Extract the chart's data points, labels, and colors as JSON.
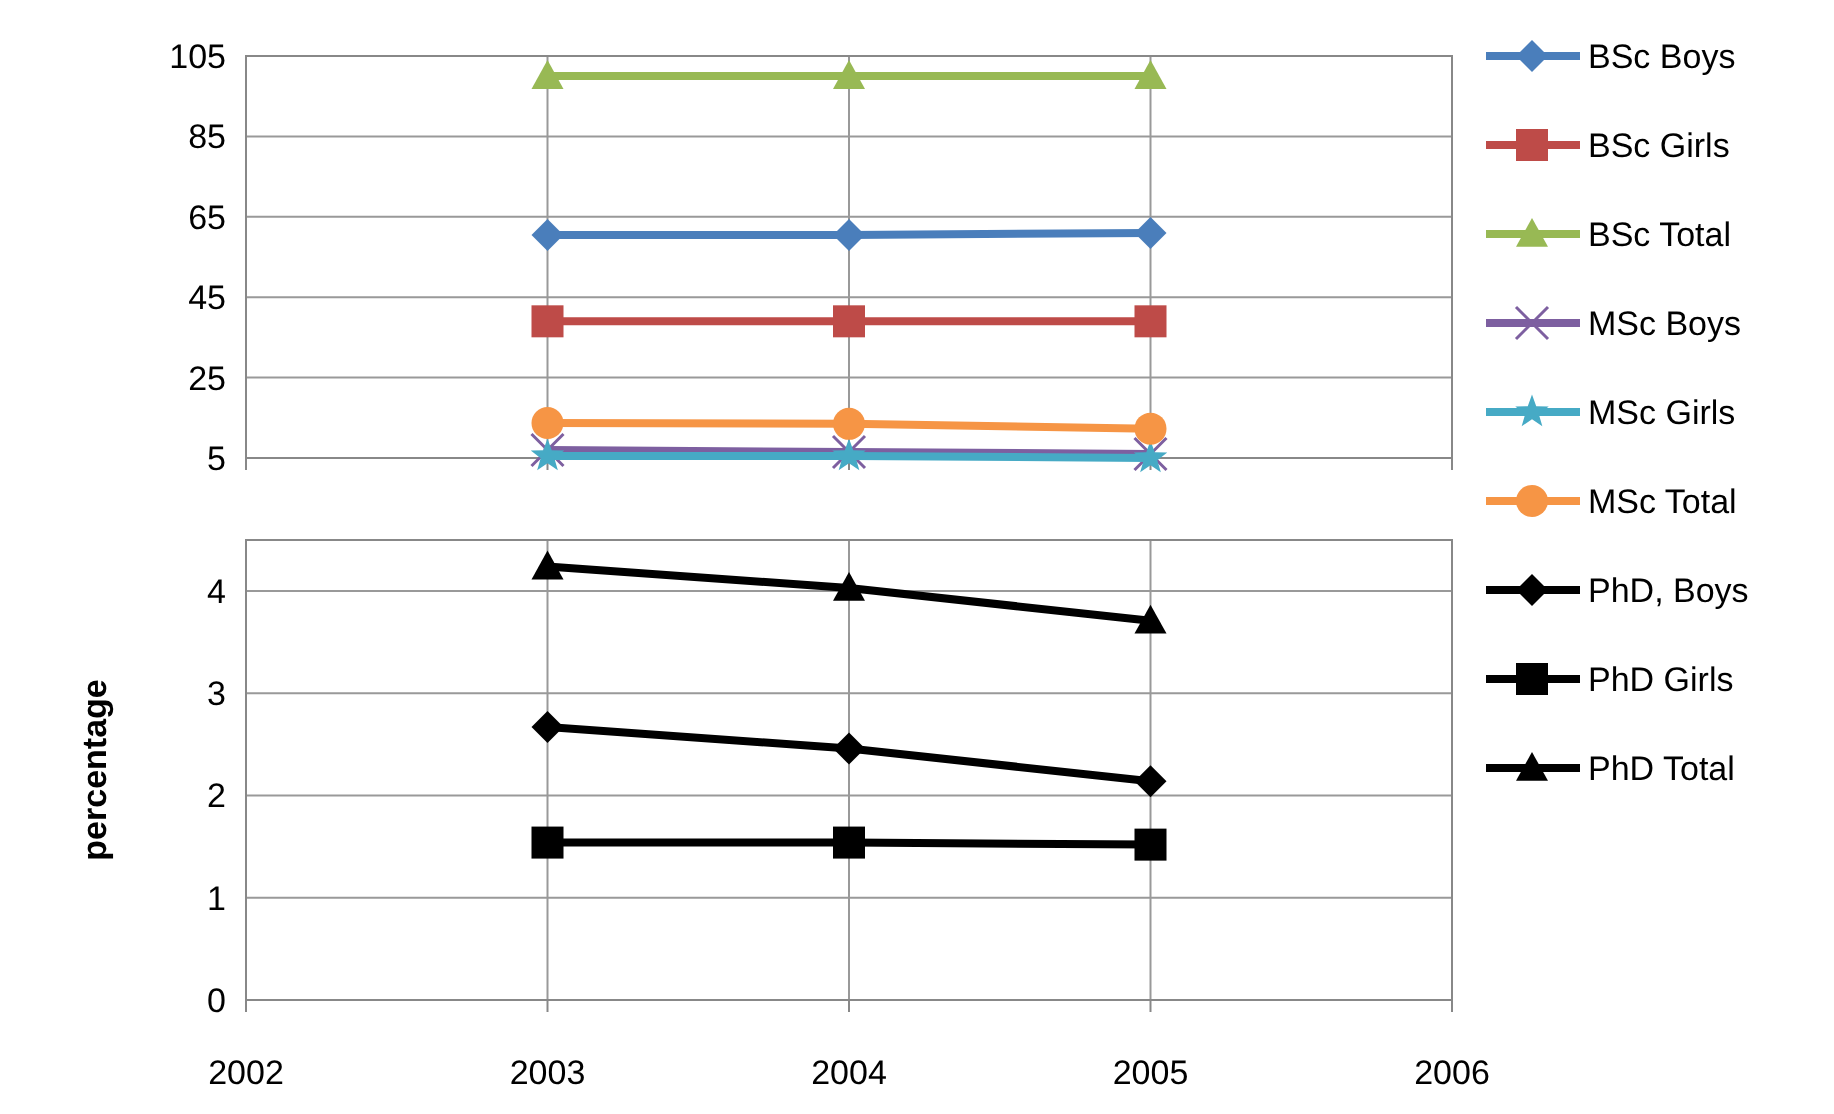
{
  "chart_data": [
    {
      "type": "line",
      "x": [
        2003,
        2004,
        2005
      ],
      "xlim": [
        2002,
        2006
      ],
      "xticks": [
        2002,
        2003,
        2004,
        2005,
        2006
      ],
      "ylim": [
        5,
        105
      ],
      "yticks": [
        5,
        25,
        45,
        65,
        85,
        105
      ],
      "grid": true,
      "legend": "right",
      "tick_labels": "y",
      "series": [
        {
          "name": "BSc Boys",
          "color": "#4a7ebb",
          "marker": "diamond",
          "values": [
            60.5,
            60.5,
            61
          ]
        },
        {
          "name": "BSc Girls",
          "color": "#be4b48",
          "marker": "square",
          "values": [
            39,
            39,
            39
          ]
        },
        {
          "name": "BSc Total",
          "color": "#98b954",
          "marker": "triangle",
          "values": [
            100,
            100,
            100
          ]
        },
        {
          "name": "MSc Boys",
          "color": "#7d5fa0",
          "marker": "cross",
          "values": [
            7,
            6.5,
            6
          ]
        },
        {
          "name": "MSc Girls",
          "color": "#46aac5",
          "marker": "star",
          "values": [
            5.5,
            5.5,
            5
          ]
        },
        {
          "name": "MSc Total",
          "color": "#f69545",
          "marker": "circle",
          "values": [
            13.7,
            13.5,
            12.3
          ]
        }
      ]
    },
    {
      "type": "line",
      "x": [
        2003,
        2004,
        2005
      ],
      "xlim": [
        2002,
        2006
      ],
      "xticks": [
        2002,
        2003,
        2004,
        2005,
        2006
      ],
      "ylim": [
        0,
        4.5
      ],
      "yticks": [
        0,
        1,
        2,
        3,
        4
      ],
      "ylabel": "percentage",
      "grid": true,
      "legend": "right",
      "series": [
        {
          "name": "PhD, Boys",
          "color": "#000000",
          "marker": "diamond",
          "values": [
            2.67,
            2.46,
            2.14
          ]
        },
        {
          "name": "PhD Girls",
          "color": "#000000",
          "marker": "square",
          "values": [
            1.54,
            1.54,
            1.52
          ]
        },
        {
          "name": "PhD Total",
          "color": "#000000",
          "marker": "triangle",
          "values": [
            4.24,
            4.03,
            3.71
          ]
        }
      ]
    }
  ]
}
